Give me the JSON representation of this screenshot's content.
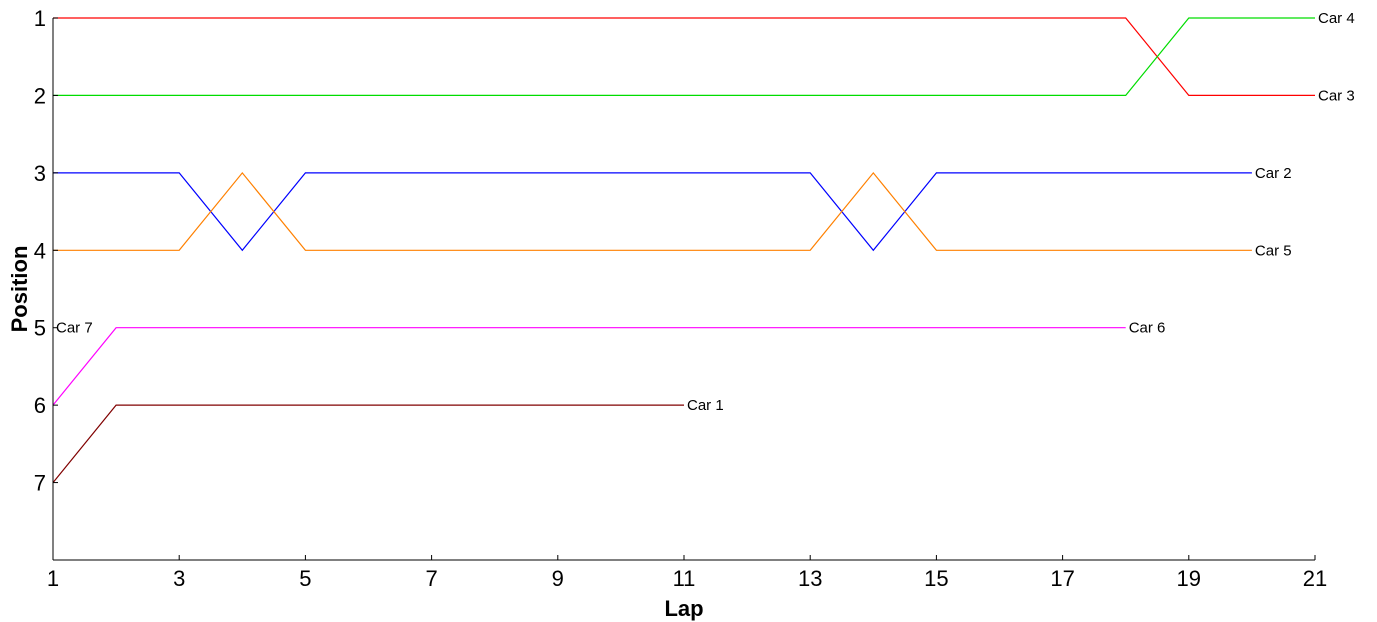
{
  "chart_data": {
    "type": "line",
    "title": "",
    "xlabel": "Lap",
    "ylabel": "Position",
    "xlim": [
      1,
      21
    ],
    "ylim": [
      1,
      8
    ],
    "y_inverted": true,
    "grid": false,
    "xticks": [
      "1",
      "3",
      "5",
      "7",
      "9",
      "11",
      "13",
      "15",
      "17",
      "19",
      "21"
    ],
    "yticks": [
      "1",
      "2",
      "3",
      "4",
      "5",
      "6",
      "7"
    ],
    "series": [
      {
        "name": "Car 3",
        "color": "#ff0000",
        "label_side": "end",
        "x": [
          1,
          2,
          3,
          4,
          5,
          6,
          7,
          8,
          9,
          10,
          11,
          12,
          13,
          14,
          15,
          16,
          17,
          18,
          19,
          20,
          21
        ],
        "y": [
          1,
          1,
          1,
          1,
          1,
          1,
          1,
          1,
          1,
          1,
          1,
          1,
          1,
          1,
          1,
          1,
          1,
          1,
          2,
          2,
          2
        ]
      },
      {
        "name": "Car 4",
        "color": "#00dd00",
        "label_side": "end",
        "x": [
          1,
          2,
          3,
          4,
          5,
          6,
          7,
          8,
          9,
          10,
          11,
          12,
          13,
          14,
          15,
          16,
          17,
          18,
          19,
          20,
          21
        ],
        "y": [
          2,
          2,
          2,
          2,
          2,
          2,
          2,
          2,
          2,
          2,
          2,
          2,
          2,
          2,
          2,
          2,
          2,
          2,
          1,
          1,
          1
        ]
      },
      {
        "name": "Car 2",
        "color": "#0000ff",
        "label_side": "end",
        "x": [
          1,
          2,
          3,
          4,
          5,
          6,
          7,
          8,
          9,
          10,
          11,
          12,
          13,
          14,
          15,
          16,
          17,
          18,
          19,
          20
        ],
        "y": [
          3,
          3,
          3,
          4,
          3,
          3,
          3,
          3,
          3,
          3,
          3,
          3,
          3,
          4,
          3,
          3,
          3,
          3,
          3,
          3
        ]
      },
      {
        "name": "Car 5",
        "color": "#ff8000",
        "label_side": "end",
        "x": [
          1,
          2,
          3,
          4,
          5,
          6,
          7,
          8,
          9,
          10,
          11,
          12,
          13,
          14,
          15,
          16,
          17,
          18,
          19,
          20
        ],
        "y": [
          4,
          4,
          4,
          3,
          4,
          4,
          4,
          4,
          4,
          4,
          4,
          4,
          4,
          3,
          4,
          4,
          4,
          4,
          4,
          4
        ]
      },
      {
        "name": "Car 6",
        "color": "#ff00ff",
        "label_side": "end",
        "x": [
          1,
          2,
          3,
          4,
          5,
          6,
          7,
          8,
          9,
          10,
          11,
          12,
          13,
          14,
          15,
          16,
          17,
          18
        ],
        "y": [
          6,
          5,
          5,
          5,
          5,
          5,
          5,
          5,
          5,
          5,
          5,
          5,
          5,
          5,
          5,
          5,
          5,
          5
        ]
      },
      {
        "name": "Car 1",
        "color": "#800000",
        "label_side": "end",
        "x": [
          1,
          2,
          3,
          4,
          5,
          6,
          7,
          8,
          9,
          10,
          11
        ],
        "y": [
          7,
          6,
          6,
          6,
          6,
          6,
          6,
          6,
          6,
          6,
          6
        ]
      }
    ],
    "annotations": [
      {
        "text": "Car 7",
        "x": 1,
        "y": 5
      }
    ]
  }
}
